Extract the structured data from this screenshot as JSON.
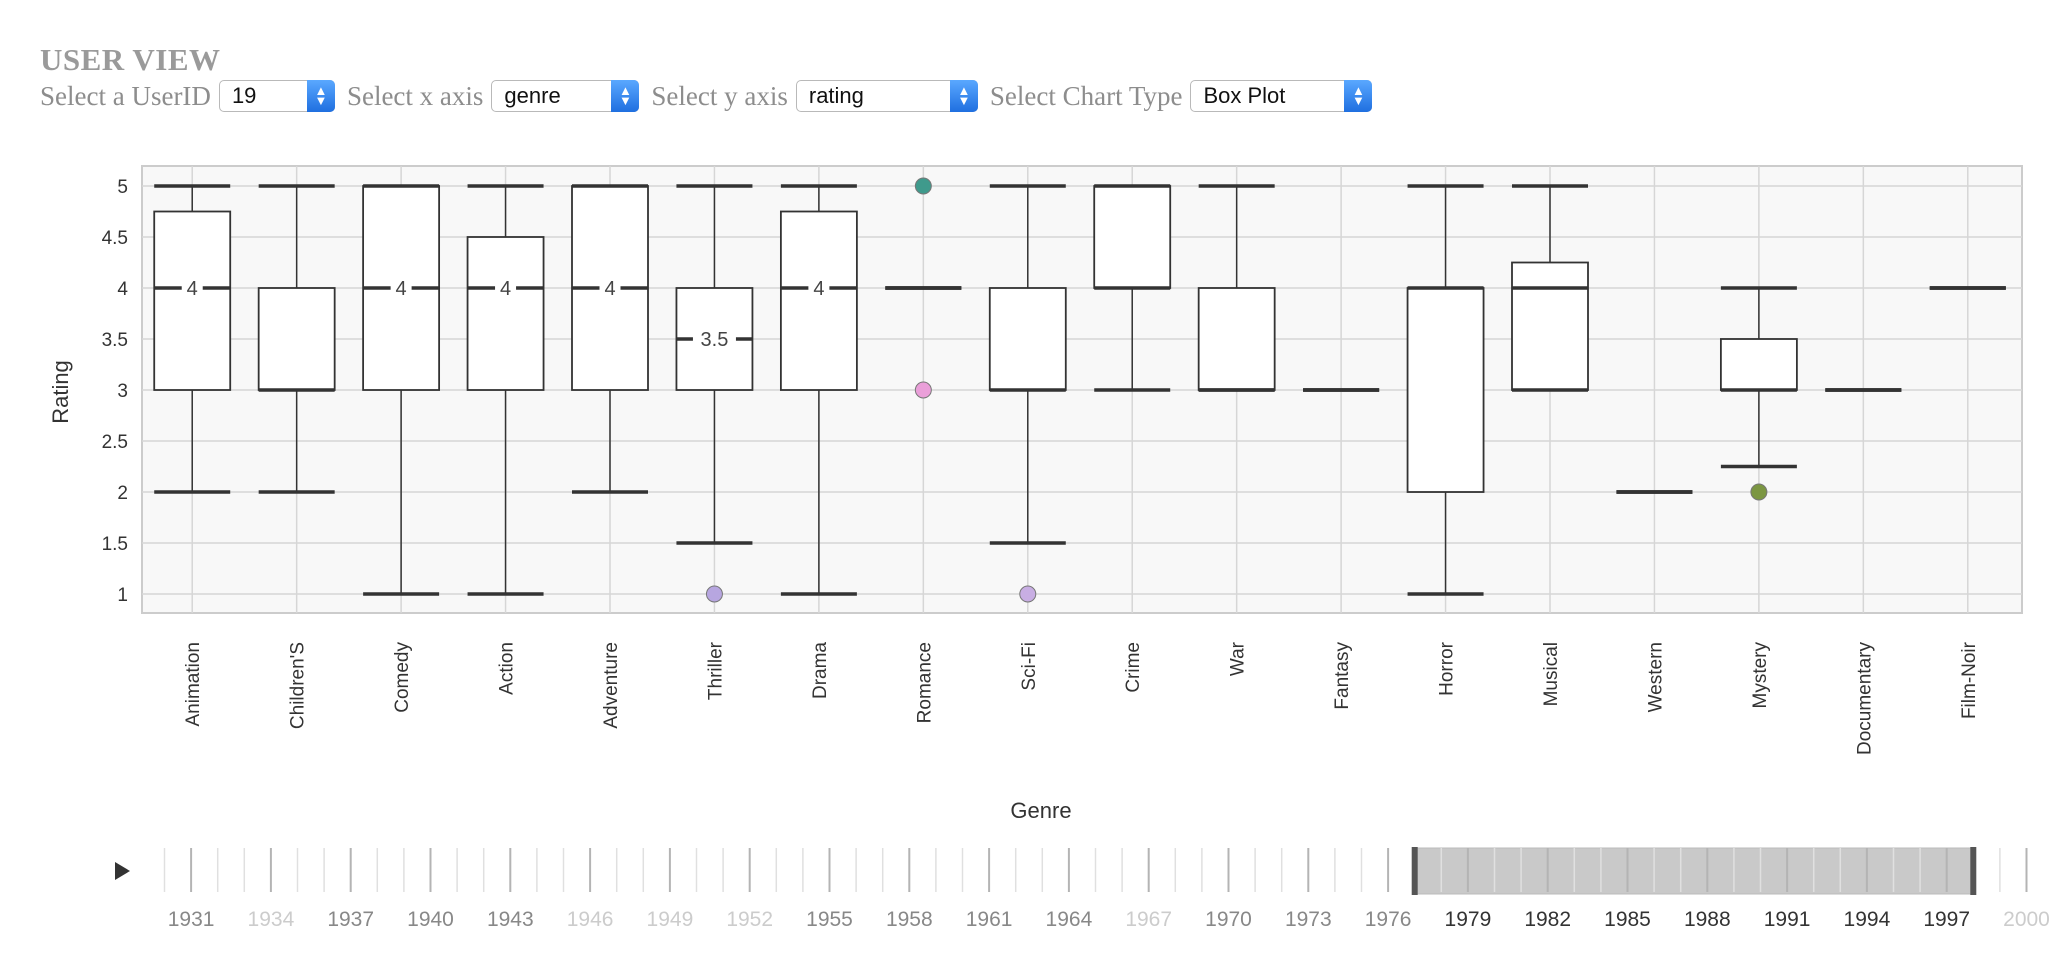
{
  "header": {
    "title": "USER VIEW",
    "controls": [
      {
        "label": "Select a UserID",
        "value": "19"
      },
      {
        "label": "Select x axis",
        "value": "genre"
      },
      {
        "label": "Select y axis",
        "value": "rating"
      },
      {
        "label": "Select Chart Type",
        "value": "Box Plot"
      }
    ]
  },
  "chart_data": {
    "type": "box",
    "xlabel": "Genre",
    "ylabel": "Rating",
    "ylim": [
      0.8,
      5.2
    ],
    "yticks": [
      "1",
      "1.5",
      "2",
      "2.5",
      "3",
      "3.5",
      "4",
      "4.5",
      "5"
    ],
    "grid": true,
    "boxes": [
      {
        "category": "Animation",
        "min": 2,
        "q1": 3,
        "median": 4,
        "q3": 4.75,
        "max": 5,
        "median_label": "4"
      },
      {
        "category": "Children'S",
        "min": 2,
        "q1": 3,
        "median": 3,
        "q3": 4,
        "max": 5,
        "median_label": ""
      },
      {
        "category": "Comedy",
        "min": 1,
        "q1": 3,
        "median": 4,
        "q3": 5,
        "max": 5,
        "median_label": "4"
      },
      {
        "category": "Action",
        "min": 1,
        "q1": 3,
        "median": 4,
        "q3": 4.5,
        "max": 5,
        "median_label": "4"
      },
      {
        "category": "Adventure",
        "min": 2,
        "q1": 3,
        "median": 4,
        "q3": 5,
        "max": 5,
        "median_label": "4"
      },
      {
        "category": "Thriller",
        "min": 1.5,
        "q1": 3,
        "median": 3.5,
        "q3": 4,
        "max": 5,
        "median_label": "3.5"
      },
      {
        "category": "Drama",
        "min": 1,
        "q1": 3,
        "median": 4,
        "q3": 4.75,
        "max": 5,
        "median_label": "4"
      },
      {
        "category": "Romance",
        "min": 4,
        "q1": 4,
        "median": 4,
        "q3": 4,
        "max": 4,
        "median_label": ""
      },
      {
        "category": "Sci-Fi",
        "min": 1.5,
        "q1": 3,
        "median": 3,
        "q3": 4,
        "max": 5,
        "median_label": ""
      },
      {
        "category": "Crime",
        "min": 3,
        "q1": 4,
        "median": 4,
        "q3": 5,
        "max": 5,
        "median_label": ""
      },
      {
        "category": "War",
        "min": 3,
        "q1": 3,
        "median": 3,
        "q3": 4,
        "max": 5,
        "median_label": ""
      },
      {
        "category": "Fantasy",
        "min": 3,
        "q1": 3,
        "median": 3,
        "q3": 3,
        "max": 3,
        "median_label": ""
      },
      {
        "category": "Horror",
        "min": 1,
        "q1": 2,
        "median": 4,
        "q3": 4,
        "max": 5,
        "median_label": ""
      },
      {
        "category": "Musical",
        "min": 3,
        "q1": 3,
        "median": 4,
        "q3": 4.25,
        "max": 5,
        "median_label": ""
      },
      {
        "category": "Western",
        "min": 2,
        "q1": 2,
        "median": 2,
        "q3": 2,
        "max": 2,
        "median_label": ""
      },
      {
        "category": "Mystery",
        "min": 2.25,
        "q1": 3,
        "median": 3,
        "q3": 3.5,
        "max": 4,
        "median_label": ""
      },
      {
        "category": "Documentary",
        "min": 3,
        "q1": 3,
        "median": 3,
        "q3": 3,
        "max": 3,
        "median_label": ""
      },
      {
        "category": "Film-Noir",
        "min": 4,
        "q1": 4,
        "median": 4,
        "q3": 4,
        "max": 4,
        "median_label": ""
      }
    ],
    "outliers": [
      {
        "category": "Thriller",
        "value": 1,
        "color": "#b7a6e0"
      },
      {
        "category": "Romance",
        "value": 5,
        "color": "#3f9a8c"
      },
      {
        "category": "Romance",
        "value": 3,
        "color": "#ea9fd9"
      },
      {
        "category": "Sci-Fi",
        "value": 1,
        "color": "#c8aee3"
      },
      {
        "category": "Mystery",
        "value": 2,
        "color": "#7b9642"
      }
    ],
    "colors": {
      "plot_bg": "#f8f8f8",
      "grid": "#d6d6d6",
      "box_stroke": "#333333",
      "brush_fill": "#c9c9c9"
    },
    "timeline": {
      "start_year": 1930,
      "end_year": 2000,
      "labels": [
        "1931",
        "1934",
        "1937",
        "1940",
        "1943",
        "1946",
        "1949",
        "1952",
        "1955",
        "1958",
        "1961",
        "1964",
        "1967",
        "1970",
        "1973",
        "1976",
        "1979",
        "1982",
        "1985",
        "1988",
        "1991",
        "1994",
        "1997",
        "2000"
      ],
      "disabled_labels": [
        "1934",
        "1946",
        "1949",
        "1952",
        "1967",
        "2000"
      ],
      "selected_range": [
        "1977",
        "1998"
      ],
      "play_icon": "play-icon"
    }
  }
}
